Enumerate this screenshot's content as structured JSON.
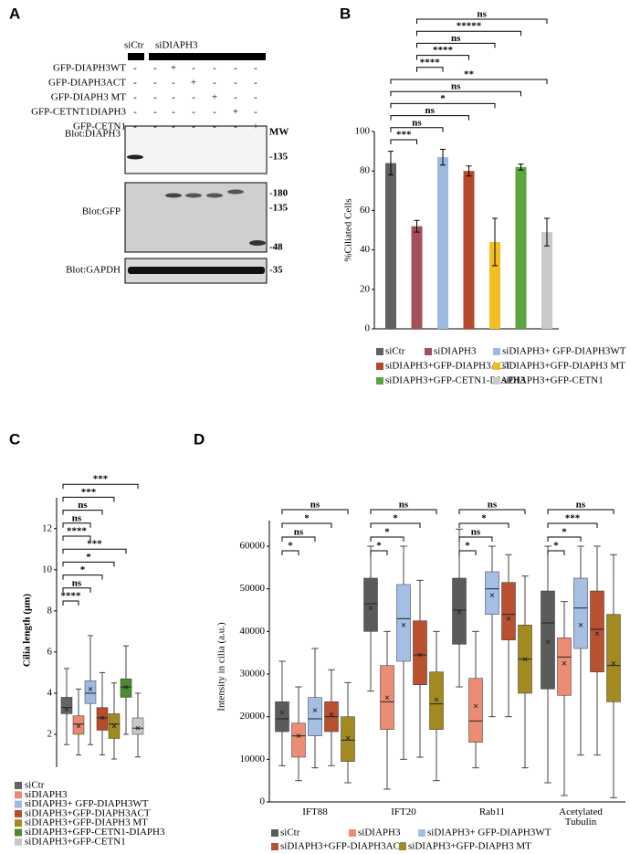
{
  "panel_labels": [
    "A",
    "B",
    "C",
    "D"
  ],
  "blot": {
    "groups": [
      "siCtr",
      "siDIAPH3"
    ],
    "constructs": [
      {
        "name": "GFP-DIAPH3WT",
        "signs": [
          "-",
          "-",
          "+",
          "-",
          "-",
          "-",
          "-"
        ]
      },
      {
        "name": "GFP-DIAPH3ACT",
        "signs": [
          "-",
          "-",
          "-",
          "+",
          "-",
          "-",
          "-"
        ]
      },
      {
        "name": "GFP-DIAPH3 MT",
        "signs": [
          "-",
          "-",
          "-",
          "-",
          "+",
          "-",
          "-"
        ]
      },
      {
        "name": "GFP-CETNT1DIAPH3",
        "signs": [
          "-",
          "-",
          "-",
          "-",
          "-",
          "+",
          "-"
        ]
      },
      {
        "name": "GFP-CETN1",
        "signs": [
          "-",
          "-",
          "-",
          "-",
          "-",
          "-",
          "+"
        ]
      }
    ],
    "blots": [
      {
        "label": "Blot:DIAPH3",
        "markers": [
          "MW",
          "-135"
        ]
      },
      {
        "label": "Blot:GFP",
        "markers": [
          "-180",
          "-135",
          "-48"
        ]
      },
      {
        "label": "Blot:GAPDH",
        "markers": [
          "-35"
        ]
      }
    ]
  },
  "chart_data": [
    {
      "type": "bar",
      "y_label": "%Ciliated Cells",
      "categories": [
        "siCtr",
        "siDIAPH3",
        "siDIAPH3+ GFP-DIAPH3WT",
        "siDIAPH3+GFP-DIAPH3ACT",
        "siDIAPH3+GFP-DIAPH3 MT",
        "siDIAPH3+GFP-CETN1-DIAPH3",
        "siDIAPH3+GFP-CETN1"
      ],
      "values": [
        84,
        52,
        87,
        80,
        44,
        82,
        49
      ],
      "errors": [
        6,
        3,
        4,
        2.5,
        12,
        1.5,
        7
      ],
      "colors": [
        "#616161",
        "#a3505a",
        "#9db9e2",
        "#b5492a",
        "#f2bf22",
        "#5ba53e",
        "#c9c9c9"
      ],
      "ylim": [
        0,
        100
      ],
      "yticks": [
        0,
        20,
        40,
        60,
        80,
        100
      ],
      "comparisons": [
        {
          "from": 0,
          "to": 1,
          "label": "***"
        },
        {
          "from": 0,
          "to": 2,
          "label": "ns"
        },
        {
          "from": 0,
          "to": 3,
          "label": "ns"
        },
        {
          "from": 0,
          "to": 4,
          "label": "*"
        },
        {
          "from": 0,
          "to": 5,
          "label": "ns"
        },
        {
          "from": 0,
          "to": 6,
          "label": "**"
        },
        {
          "from": 1,
          "to": 2,
          "label": "****"
        },
        {
          "from": 1,
          "to": 3,
          "label": "****"
        },
        {
          "from": 1,
          "to": 4,
          "label": "ns"
        },
        {
          "from": 1,
          "to": 5,
          "label": "*****"
        },
        {
          "from": 1,
          "to": 6,
          "label": "ns"
        }
      ]
    },
    {
      "type": "box",
      "y_label": "Cilia length (μm)",
      "categories": [
        "siCtr",
        "siDIAPH3",
        "siDIAPH3+ GFP-DIAPH3WT",
        "siDIAPH3+GFP-DIAPH3ACT",
        "siDIAPH3+GFP-DIAPH3 MT",
        "siDIAPH3+GFP-CETN1-DIAPH3",
        "siDIAPH3+GFP-CETN1"
      ],
      "colors": [
        "#646464",
        "#e98a70",
        "#9fbae2",
        "#b84b2b",
        "#a28b1e",
        "#4d8b2f",
        "#c9c9c9"
      ],
      "boxes": [
        {
          "min": 1.5,
          "q1": 3.0,
          "median": 3.3,
          "q3": 3.8,
          "max": 5.2,
          "mean": 3.2
        },
        {
          "min": 1.0,
          "q1": 2.0,
          "median": 2.5,
          "q3": 2.9,
          "max": 4.2,
          "mean": 2.4
        },
        {
          "min": 1.5,
          "q1": 3.5,
          "median": 4.0,
          "q3": 4.6,
          "max": 6.8,
          "mean": 4.2
        },
        {
          "min": 1.0,
          "q1": 2.2,
          "median": 2.8,
          "q3": 3.3,
          "max": 5.0,
          "mean": 2.8
        },
        {
          "min": 0.8,
          "q1": 1.8,
          "median": 2.5,
          "q3": 3.0,
          "max": 4.5,
          "mean": 2.4
        },
        {
          "min": 2.0,
          "q1": 3.8,
          "median": 4.3,
          "q3": 4.7,
          "max": 6.3,
          "mean": 4.3
        },
        {
          "min": 0.9,
          "q1": 2.0,
          "median": 2.3,
          "q3": 2.8,
          "max": 4.0,
          "mean": 2.3
        }
      ],
      "ylim": [
        0.4,
        13.5
      ],
      "yticks": [
        2,
        4,
        6,
        8,
        10,
        12
      ],
      "comparisons": [
        {
          "from": 0,
          "to": 1,
          "label": "****"
        },
        {
          "from": 0,
          "to": 2,
          "label": "ns"
        },
        {
          "from": 0,
          "to": 3,
          "label": "*"
        },
        {
          "from": 0,
          "to": 4,
          "label": "*"
        },
        {
          "from": 0,
          "to": 5,
          "label": "***"
        },
        {
          "from": 0,
          "to": 2,
          "label": "****"
        },
        {
          "from": 0,
          "to": 2,
          "label": "ns"
        },
        {
          "from": 0,
          "to": 3,
          "label": "ns"
        },
        {
          "from": 0,
          "to": 4,
          "label": "***"
        },
        {
          "from": 0,
          "to": 6,
          "label": "***"
        }
      ]
    },
    {
      "type": "grouped-box",
      "y_label": "Intensity in cilia (a.u.)",
      "categories": [
        "IFT88",
        "IFT20",
        "Rab11",
        "Acetylated Tubulin"
      ],
      "ylim": [
        0,
        66000
      ],
      "yticks": [
        0,
        10000,
        20000,
        30000,
        40000,
        50000,
        60000
      ],
      "series": [
        {
          "name": "siCtr",
          "color": "#5b5b5b",
          "boxes": [
            {
              "min": 8500,
              "q1": 16500,
              "median": 19500,
              "q3": 23500,
              "max": 33000,
              "mean": 21000
            },
            {
              "min": 26000,
              "q1": 40000,
              "median": 46500,
              "q3": 52500,
              "max": 60000,
              "mean": 45500
            },
            {
              "min": 27000,
              "q1": 37000,
              "median": 45000,
              "q3": 52500,
              "max": 64000,
              "mean": 44500
            },
            {
              "min": 4500,
              "q1": 26500,
              "median": 42000,
              "q3": 49500,
              "max": 60000,
              "mean": 37500
            }
          ]
        },
        {
          "name": "siDIAPH3",
          "color": "#ec8c75",
          "boxes": [
            {
              "min": 5000,
              "q1": 10500,
              "median": 15500,
              "q3": 18500,
              "max": 27000,
              "mean": 15500
            },
            {
              "min": 3000,
              "q1": 17000,
              "median": 23500,
              "q3": 32000,
              "max": 40000,
              "mean": 24500
            },
            {
              "min": 8000,
              "q1": 14000,
              "median": 19000,
              "q3": 29000,
              "max": 40000,
              "mean": 22500
            },
            {
              "min": 1500,
              "q1": 25000,
              "median": 34000,
              "q3": 38500,
              "max": 47000,
              "mean": 32500
            }
          ]
        },
        {
          "name": "siDIAPH3+ GFP-DIAPH3WT",
          "color": "#a4bee4",
          "boxes": [
            {
              "min": 8000,
              "q1": 15500,
              "median": 19500,
              "q3": 24500,
              "max": 36000,
              "mean": 21500
            },
            {
              "min": 10000,
              "q1": 33000,
              "median": 43000,
              "q3": 51000,
              "max": 60000,
              "mean": 41500
            },
            {
              "min": 20000,
              "q1": 44000,
              "median": 50000,
              "q3": 54000,
              "max": 60000,
              "mean": 48500
            },
            {
              "min": 11000,
              "q1": 36000,
              "median": 45500,
              "q3": 52500,
              "max": 60000,
              "mean": 41500
            }
          ]
        },
        {
          "name": "siDIAPH3+GFP-DIAPH3ACT",
          "color": "#b9502f",
          "boxes": [
            {
              "min": 8500,
              "q1": 16500,
              "median": 20000,
              "q3": 23500,
              "max": 31000,
              "mean": 20500
            },
            {
              "min": 10500,
              "q1": 27500,
              "median": 34500,
              "q3": 42500,
              "max": 52000,
              "mean": 34500
            },
            {
              "min": 20000,
              "q1": 38000,
              "median": 44000,
              "q3": 51500,
              "max": 58000,
              "mean": 43000
            },
            {
              "min": 11000,
              "q1": 30500,
              "median": 40500,
              "q3": 49500,
              "max": 60000,
              "mean": 39500
            }
          ]
        },
        {
          "name": "siDIAPH3+GFP-DIAPH3 MT",
          "color": "#a28a21",
          "boxes": [
            {
              "min": 4500,
              "q1": 9500,
              "median": 14500,
              "q3": 20000,
              "max": 28000,
              "mean": 15000
            },
            {
              "min": 5000,
              "q1": 17000,
              "median": 23000,
              "q3": 30500,
              "max": 40000,
              "mean": 24000
            },
            {
              "min": 8000,
              "q1": 25500,
              "median": 33500,
              "q3": 41500,
              "max": 53000,
              "mean": 33500
            },
            {
              "min": 1000,
              "q1": 23500,
              "median": 32000,
              "q3": 44000,
              "max": 58000,
              "mean": 32500
            }
          ]
        }
      ],
      "comparisons": [
        [
          {
            "to": 1,
            "label": "*"
          },
          {
            "to": 2,
            "label": "ns"
          },
          {
            "to": 3,
            "label": "*"
          },
          {
            "to": 4,
            "label": "ns"
          }
        ],
        [
          {
            "to": 1,
            "label": "*"
          },
          {
            "to": 2,
            "label": "*"
          },
          {
            "to": 3,
            "label": "*"
          },
          {
            "to": 4,
            "label": "ns"
          }
        ],
        [
          {
            "to": 1,
            "label": "*"
          },
          {
            "to": 2,
            "label": "ns"
          },
          {
            "to": 3,
            "label": "*"
          },
          {
            "to": 4,
            "label": "ns"
          }
        ],
        [
          {
            "to": 1,
            "label": "*"
          },
          {
            "to": 2,
            "label": "*"
          },
          {
            "to": 3,
            "label": "***"
          },
          {
            "to": 4,
            "label": "ns"
          }
        ]
      ]
    }
  ]
}
